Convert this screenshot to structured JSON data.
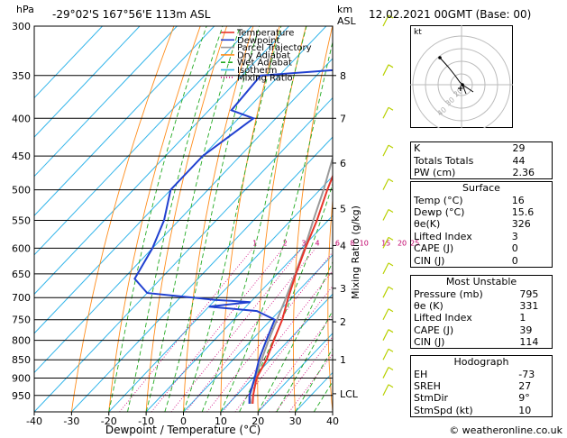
{
  "header": {
    "hpa": "hPa",
    "location": "-29°02'S  167°56'E  113m  ASL",
    "km": "km",
    "asl": "ASL",
    "time": "12.02.2021  00GMT  (Base: 00)"
  },
  "legend": [
    "Temperature",
    "Dewpoint",
    "Parcel Trajectory",
    "Dry Adiabat",
    "Wet Adiabat",
    "Isotherm",
    "Mixing Ratio"
  ],
  "colors": {
    "temperature": "#e8342a",
    "dewpoint": "#2040d0",
    "parcel": "#9a9a9a",
    "dry": "#ff8c1a",
    "wet": "#22aa22",
    "isotherm": "#33b5ea",
    "mixing": "#d1007a",
    "wind": "#b8d000"
  },
  "chart_data": {
    "type": "skew-t",
    "xlabel": "Dewpoint / Temperature (°C)",
    "ylabel_right": "Mixing Ratio (g/kg)",
    "ylabel_left": "hPa",
    "pressure_ticks": [
      300,
      350,
      400,
      450,
      500,
      550,
      600,
      650,
      700,
      750,
      800,
      850,
      900,
      950
    ],
    "temp_ticks": [
      -40,
      -30,
      -20,
      -10,
      0,
      10,
      20,
      30,
      40
    ],
    "xlim": [
      -40,
      40
    ],
    "ylim": [
      1000,
      300
    ],
    "km_ticks": [
      {
        "km": "8",
        "p": 350
      },
      {
        "km": "7",
        "p": 400
      },
      {
        "km": "6",
        "p": 460
      },
      {
        "km": "5",
        "p": 530
      },
      {
        "km": "4",
        "p": 595
      },
      {
        "km": "3",
        "p": 680
      },
      {
        "km": "2",
        "p": 755
      },
      {
        "km": "1",
        "p": 850
      },
      {
        "km": "LCL",
        "p": 945
      }
    ],
    "mixing_ratio_labels": [
      "1",
      "2",
      "3",
      "4",
      "6",
      "8",
      "10",
      "15",
      "20",
      "25"
    ],
    "mixing_ratio_values": [
      1,
      2,
      3,
      4,
      6,
      8,
      10,
      15,
      20,
      25
    ],
    "temperature": {
      "p": [
        975,
        950,
        900,
        850,
        800,
        750,
        700,
        650,
        600,
        550,
        500,
        450,
        400,
        350,
        300
      ],
      "t": [
        16.5,
        14.5,
        11,
        9,
        6,
        3,
        -1,
        -5,
        -9,
        -13,
        -18,
        -23,
        -28,
        -37,
        -45
      ]
    },
    "dewpoint": {
      "p": [
        975,
        950,
        900,
        850,
        800,
        750,
        730,
        720,
        710,
        705,
        690,
        660,
        600,
        550,
        500,
        450,
        400,
        390,
        350,
        340,
        330,
        320,
        300
      ],
      "t": [
        15.6,
        13.5,
        10.5,
        7,
        4,
        1,
        -6,
        -20,
        -10,
        -20,
        -40,
        -47,
        -50,
        -54,
        -60,
        -60,
        -56,
        -64,
        -65,
        -34,
        -42,
        -34,
        -40
      ]
    },
    "parcel": {
      "p": [
        975,
        950,
        900,
        850,
        800,
        750,
        700,
        650,
        600,
        550,
        500,
        450,
        400,
        350,
        300
      ],
      "t": [
        16,
        13.6,
        10.6,
        7.7,
        4.6,
        1.6,
        -1.6,
        -5.2,
        -9.2,
        -14,
        -19,
        -25,
        -32,
        -40,
        -48
      ]
    },
    "wind_levels": [
      300,
      350,
      400,
      450,
      500,
      550,
      600,
      650,
      700,
      750,
      800,
      850,
      900,
      950
    ]
  },
  "indices": [
    {
      "k": "K",
      "v": "29"
    },
    {
      "k": "Totals Totals",
      "v": "44"
    },
    {
      "k": "PW (cm)",
      "v": "2.36"
    }
  ],
  "surface": {
    "title": "Surface",
    "rows": [
      {
        "k": "Temp (°C)",
        "v": "16"
      },
      {
        "k": "Dewp (°C)",
        "v": "15.6"
      },
      {
        "k": "θe(K)",
        "v": "326"
      },
      {
        "k": "Lifted Index",
        "v": "3"
      },
      {
        "k": "CAPE (J)",
        "v": "0"
      },
      {
        "k": "CIN (J)",
        "v": "0"
      }
    ]
  },
  "most_unstable": {
    "title": "Most Unstable",
    "rows": [
      {
        "k": "Pressure (mb)",
        "v": "795"
      },
      {
        "k": "θe (K)",
        "v": "331"
      },
      {
        "k": "Lifted Index",
        "v": "1"
      },
      {
        "k": "CAPE (J)",
        "v": "39"
      },
      {
        "k": "CIN (J)",
        "v": "114"
      }
    ]
  },
  "hodograph": {
    "title": "Hodograph",
    "label_kt": "kt",
    "ring_labels": [
      "40",
      "30",
      "20"
    ],
    "rows": [
      {
        "k": "EH",
        "v": "-73"
      },
      {
        "k": "SREH",
        "v": "27"
      },
      {
        "k": "StmDir",
        "v": "9°"
      },
      {
        "k": "StmSpd (kt)",
        "v": "10"
      }
    ]
  },
  "copyright": "© weatheronline.co.uk"
}
